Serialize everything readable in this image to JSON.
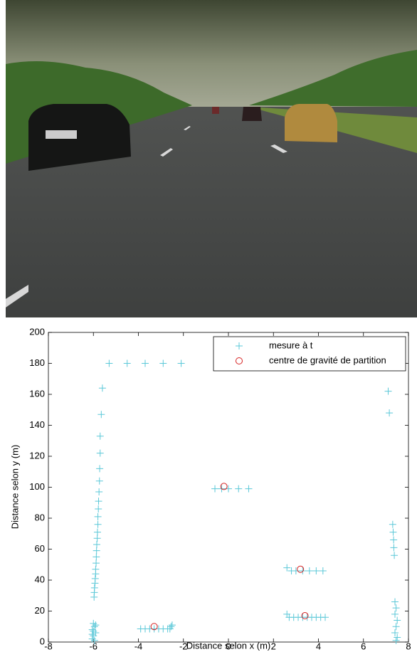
{
  "chart_data": {
    "type": "scatter",
    "xlabel": "Distance selon x (m)",
    "ylabel": "Distance selon y (m)",
    "xlim": [
      -8,
      8
    ],
    "ylim": [
      0,
      200
    ],
    "xticks": [
      -8,
      -6,
      -4,
      -2,
      0,
      2,
      4,
      6,
      8
    ],
    "yticks": [
      0,
      20,
      40,
      60,
      80,
      100,
      120,
      140,
      160,
      180,
      200
    ],
    "grid": false,
    "legend": "upper right",
    "series": [
      {
        "name": "mesure à t",
        "color": "#5bc8d8",
        "marker": "+",
        "x": [
          -5.3,
          -4.5,
          -3.7,
          -2.9,
          -2.1,
          -5.6,
          -5.65,
          -5.7,
          -5.7,
          -5.72,
          -5.73,
          -5.75,
          -5.77,
          -5.78,
          -5.8,
          -5.8,
          -5.82,
          -5.83,
          -5.85,
          -5.86,
          -5.87,
          -5.88,
          -5.9,
          -5.9,
          -5.92,
          -5.93,
          -5.95,
          -5.96,
          -5.97,
          -6,
          -5.95,
          -6.05,
          -5.9,
          -6,
          -6.05,
          -5.95,
          -6,
          -5.9,
          -6.05,
          -3.9,
          -3.7,
          -3.5,
          -3.3,
          -3.1,
          -2.9,
          -2.7,
          -2.6,
          -2.5,
          -2.55,
          -0.6,
          -0.3,
          0,
          0.45,
          0.9,
          2.6,
          2.8,
          3.0,
          3.3,
          3.6,
          3.9,
          4.2,
          2.6,
          2.7,
          2.9,
          3.1,
          3.3,
          3.5,
          3.7,
          3.9,
          4.1,
          4.3,
          7.1,
          7.15,
          7.3,
          7.32,
          7.34,
          7.35,
          7.37,
          7.4,
          7.45,
          7.4,
          7.5,
          7.45,
          7.4,
          7.5,
          7.45
        ],
        "y": [
          180,
          180,
          180,
          180,
          180,
          164,
          147,
          133,
          122,
          112,
          104,
          97,
          91,
          86,
          81,
          76,
          71,
          67,
          63,
          59,
          55,
          51,
          47,
          44,
          41,
          38,
          35,
          32,
          29,
          12,
          10,
          8,
          6,
          4,
          2,
          1,
          7,
          11,
          5,
          8.5,
          8.5,
          8.5,
          8.5,
          8.5,
          8.5,
          8.5,
          8.5,
          11,
          10,
          99,
          99,
          99,
          99,
          99,
          48,
          46,
          46,
          46,
          46,
          46,
          46,
          18,
          16,
          16,
          16,
          16,
          16,
          16,
          16,
          16,
          16,
          162,
          148,
          76,
          71,
          66,
          61,
          56,
          26,
          22,
          18,
          14,
          10,
          6,
          3,
          1
        ]
      },
      {
        "name": "centre de gravité de partition",
        "color": "#d62020",
        "marker": "o",
        "x": [
          -3.3,
          -0.2,
          3.2,
          3.4
        ],
        "y": [
          10,
          100.5,
          47,
          17
        ]
      }
    ]
  }
}
